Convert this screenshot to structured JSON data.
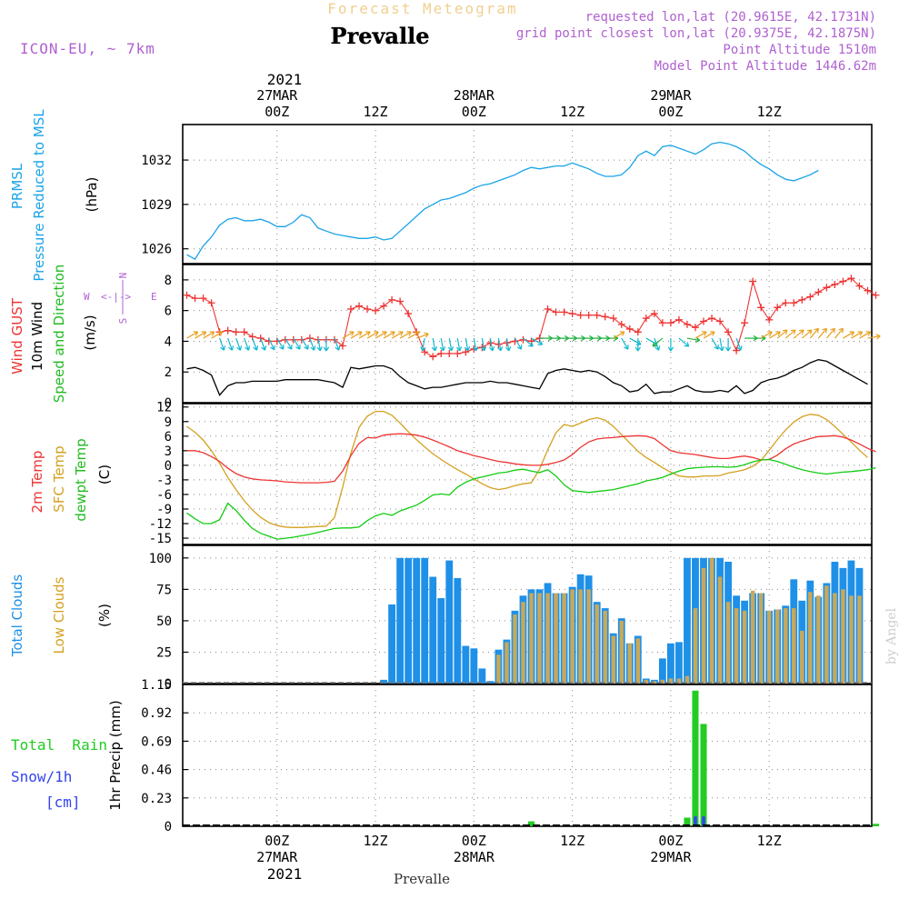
{
  "header": {
    "chart_title": "Forecast Meteogram",
    "location": "Prevalle",
    "model": "ICON-EU, ~ 7km",
    "requested": "requested lon,lat (20.9615E, 42.1731N)",
    "gridpoint": "grid point closest lon,lat (20.9375E, 42.1875N)",
    "point_altitude": "Point Altitude 1510m",
    "model_altitude": "Model Point Altitude 1446.62m",
    "footer_location": "Prevalle",
    "credit": "by Angel"
  },
  "time_axis": {
    "top_year": "2021",
    "bottom_year": "2021",
    "ticks": [
      {
        "hour": 11,
        "time": "00Z",
        "date": "27MAR"
      },
      {
        "hour": 23,
        "time": "12Z",
        "date": ""
      },
      {
        "hour": 35,
        "time": "00Z",
        "date": "28MAR"
      },
      {
        "hour": 47,
        "time": "12Z",
        "date": ""
      },
      {
        "hour": 59,
        "time": "00Z",
        "date": "29MAR"
      },
      {
        "hour": 71,
        "time": "12Z",
        "date": ""
      }
    ]
  },
  "colors": {
    "pressure": "#1aa3e8",
    "gust": "#ee3333",
    "wind": "#000000",
    "temp": "#ee3333",
    "sfc": "#d4a020",
    "dewpt": "#11cc11",
    "total_clouds": "#1e90e8",
    "low_clouds": "#c8a85a",
    "rain": "#22cc22",
    "snow": "#3344ee",
    "header_title": "#f0d090",
    "header_purple": "#b060d0"
  },
  "chart_data": [
    {
      "type": "line",
      "title": "PRMSL",
      "ylabel_lines": [
        "PRMSL",
        "Pressure Reduced to MSL"
      ],
      "unit": "(hPa)",
      "yticks": [
        "1026",
        "1029",
        "1032"
      ],
      "ylim": [
        1025,
        1034.4
      ],
      "x_start_hour": 0,
      "series": [
        {
          "key": "pressure",
          "values": [
            1025.6,
            1025.3,
            1026.2,
            1026.8,
            1027.6,
            1028.0,
            1028.1,
            1027.9,
            1027.9,
            1028.0,
            1027.8,
            1027.5,
            1027.5,
            1027.8,
            1028.3,
            1028.1,
            1027.4,
            1027.2,
            1027.0,
            1026.9,
            1026.8,
            1026.7,
            1026.7,
            1026.8,
            1026.6,
            1026.7,
            1027.2,
            1027.7,
            1028.2,
            1028.7,
            1029.0,
            1029.3,
            1029.4,
            1029.6,
            1029.8,
            1030.1,
            1030.3,
            1030.4,
            1030.6,
            1030.8,
            1031.0,
            1031.3,
            1031.5,
            1031.4,
            1031.5,
            1031.6,
            1031.6,
            1031.8,
            1031.6,
            1031.4,
            1031.1,
            1030.9,
            1030.9,
            1031.0,
            1031.5,
            1032.3,
            1032.6,
            1032.3,
            1032.9,
            1033.0,
            1032.8,
            1032.6,
            1032.4,
            1032.7,
            1033.1,
            1033.2,
            1033.1,
            1032.9,
            1032.6,
            1032.1,
            1031.7,
            1031.4,
            1031.0,
            1030.7,
            1030.6,
            1030.8,
            1031.0,
            1031.3
          ]
        }
      ]
    },
    {
      "type": "line",
      "title": "Wind",
      "ylabel_lines": [
        "Wind GUST",
        "10m Wind",
        "Speed and Direction"
      ],
      "unit": "(m/s)",
      "compass": {
        "n": "N",
        "s": "S",
        "e": "E",
        "w": "W",
        "glyph": "<-|->"
      },
      "yticks": [
        "0",
        "2",
        "4",
        "6",
        "8"
      ],
      "ylim": [
        0,
        9
      ],
      "x_start_hour": 0,
      "series": [
        {
          "key": "gust",
          "values": [
            7.0,
            6.8,
            6.8,
            6.5,
            4.6,
            4.7,
            4.6,
            4.6,
            4.3,
            4.2,
            4.0,
            4.0,
            4.1,
            4.1,
            4.1,
            4.2,
            4.1,
            4.1,
            4.1,
            3.7,
            6.1,
            6.3,
            6.1,
            6.0,
            6.3,
            6.7,
            6.6,
            5.8,
            4.6,
            3.3,
            3.0,
            3.2,
            3.2,
            3.2,
            3.3,
            3.5,
            3.6,
            3.9,
            3.8,
            3.9,
            4.0,
            4.1,
            4.0,
            4.2,
            6.1,
            5.9,
            5.9,
            5.8,
            5.7,
            5.7,
            5.7,
            5.6,
            5.5,
            5.1,
            4.8,
            4.6,
            5.5,
            5.8,
            5.2,
            5.2,
            5.4,
            5.1,
            4.9,
            5.3,
            5.5,
            5.3,
            4.6,
            3.4,
            5.2,
            7.9,
            6.2,
            5.4,
            6.2,
            6.5,
            6.5,
            6.7,
            6.9,
            7.2,
            7.5,
            7.7,
            7.9,
            8.1,
            7.6,
            7.3,
            7.0
          ]
        },
        {
          "key": "wind",
          "values": [
            2.2,
            2.3,
            2.1,
            1.8,
            0.5,
            1.1,
            1.3,
            1.3,
            1.4,
            1.4,
            1.4,
            1.4,
            1.5,
            1.5,
            1.5,
            1.5,
            1.5,
            1.4,
            1.3,
            1.0,
            2.3,
            2.2,
            2.3,
            2.4,
            2.4,
            2.2,
            1.7,
            1.3,
            1.1,
            0.9,
            1.0,
            1.0,
            1.1,
            1.2,
            1.3,
            1.3,
            1.3,
            1.4,
            1.3,
            1.3,
            1.2,
            1.1,
            1.0,
            0.9,
            1.9,
            2.1,
            2.2,
            2.1,
            2.0,
            2.1,
            2.0,
            1.7,
            1.3,
            1.1,
            0.7,
            0.8,
            1.2,
            0.6,
            0.7,
            0.7,
            0.9,
            1.1,
            0.8,
            0.7,
            0.7,
            0.8,
            0.7,
            1.1,
            0.6,
            0.8,
            1.3,
            1.5,
            1.6,
            1.8,
            2.1,
            2.3,
            2.6,
            2.8,
            2.7,
            2.4,
            2.1,
            1.8,
            1.5,
            1.2
          ]
        },
        {
          "key": "arrow_dir_deg",
          "values": [
            60,
            60,
            60,
            60,
            160,
            160,
            160,
            160,
            160,
            160,
            155,
            150,
            150,
            150,
            150,
            160,
            170,
            180,
            160,
            60,
            60,
            60,
            60,
            60,
            60,
            60,
            60,
            60,
            70,
            190,
            170,
            170,
            170,
            170,
            170,
            170,
            170,
            170,
            170,
            170,
            150,
            130,
            120,
            90,
            90,
            90,
            90,
            90,
            90,
            90,
            90,
            90,
            60,
            150,
            120,
            180,
            120,
            160,
            230,
            180,
            130,
            100,
            60,
            60,
            150,
            170,
            180,
            160,
            90,
            90,
            60,
            60,
            50,
            50,
            50,
            50,
            40,
            40,
            40,
            40,
            60,
            60,
            60,
            80
          ]
        }
      ]
    },
    {
      "type": "line",
      "title": "Temperature",
      "ylabel_lines": [
        "2m Temp",
        "SFC Temp",
        "dewpt Temp"
      ],
      "unit": "(C)",
      "yticks": [
        "-15",
        "-12",
        "-9",
        "-6",
        "-3",
        "0",
        "3",
        "6",
        "9",
        "12"
      ],
      "ylim": [
        -16.3,
        12.7
      ],
      "x_start_hour": 0,
      "series": [
        {
          "key": "temp",
          "values": [
            3.0,
            3.0,
            2.6,
            1.8,
            0.8,
            -0.6,
            -1.7,
            -2.4,
            -2.8,
            -3.0,
            -3.1,
            -3.2,
            -3.4,
            -3.5,
            -3.6,
            -3.6,
            -3.6,
            -3.5,
            -3.3,
            -1.2,
            2.0,
            4.5,
            5.7,
            5.6,
            6.2,
            6.4,
            6.5,
            6.4,
            6.2,
            5.8,
            5.2,
            4.5,
            3.8,
            3.0,
            2.5,
            2.0,
            1.6,
            1.2,
            0.8,
            0.6,
            0.3,
            0.1,
            0.0,
            0.0,
            0.2,
            0.6,
            1.1,
            2.2,
            3.7,
            4.8,
            5.4,
            5.6,
            5.7,
            5.9,
            6.0,
            6.1,
            6.0,
            5.5,
            4.2,
            3.0,
            2.6,
            2.4,
            2.2,
            1.9,
            1.6,
            1.4,
            1.4,
            1.7,
            1.9,
            1.6,
            1.1,
            1.2,
            2.1,
            3.4,
            4.4,
            5.0,
            5.5,
            5.9,
            6.0,
            6.1,
            5.8,
            5.2,
            4.4,
            3.5,
            2.8
          ]
        },
        {
          "key": "sfc",
          "values": [
            8.0,
            6.8,
            5.2,
            3.0,
            0.4,
            -2.5,
            -5.0,
            -7.3,
            -9.2,
            -10.7,
            -11.8,
            -12.4,
            -12.7,
            -12.8,
            -12.8,
            -12.7,
            -12.6,
            -12.5,
            -10.8,
            -4.5,
            2.5,
            7.8,
            10.1,
            11.1,
            11.1,
            10.3,
            8.7,
            6.9,
            5.3,
            3.8,
            2.4,
            1.2,
            0.1,
            -0.9,
            -1.8,
            -2.8,
            -3.8,
            -4.6,
            -5.0,
            -4.7,
            -4.2,
            -3.8,
            -3.6,
            -0.8,
            3.2,
            6.7,
            8.4,
            8.0,
            8.7,
            9.4,
            9.8,
            9.3,
            8.0,
            6.3,
            4.6,
            2.9,
            1.6,
            0.6,
            -0.5,
            -1.4,
            -2.2,
            -2.4,
            -2.4,
            -2.2,
            -2.2,
            -2.1,
            -1.6,
            -1.3,
            -0.9,
            -0.2,
            1.0,
            3.1,
            5.3,
            7.3,
            8.9,
            10.0,
            10.5,
            10.3,
            9.4,
            8.0,
            6.4,
            4.8,
            3.1,
            1.6
          ]
        },
        {
          "key": "dewpt",
          "values": [
            -9.8,
            -11.0,
            -12.0,
            -12.0,
            -11.2,
            -7.8,
            -9.3,
            -11.3,
            -13.0,
            -14.0,
            -14.6,
            -15.2,
            -15.0,
            -14.8,
            -14.5,
            -14.2,
            -13.8,
            -13.4,
            -13.0,
            -12.9,
            -12.9,
            -12.7,
            -11.4,
            -10.4,
            -9.9,
            -10.3,
            -9.4,
            -8.8,
            -8.2,
            -7.2,
            -6.1,
            -5.9,
            -6.1,
            -4.5,
            -3.5,
            -2.8,
            -2.4,
            -2.0,
            -1.6,
            -1.4,
            -1.0,
            -0.8,
            -1.2,
            -1.5,
            -0.9,
            -2.2,
            -4.0,
            -5.2,
            -5.4,
            -5.6,
            -5.4,
            -5.2,
            -5.0,
            -4.6,
            -4.2,
            -3.8,
            -3.2,
            -2.9,
            -2.5,
            -1.8,
            -1.2,
            -0.7,
            -0.5,
            -0.4,
            -0.3,
            -0.3,
            -0.4,
            -0.3,
            0.1,
            0.7,
            1.1,
            1.2,
            0.8,
            0.2,
            -0.4,
            -0.9,
            -1.3,
            -1.6,
            -1.8,
            -1.6,
            -1.4,
            -1.3,
            -1.1,
            -0.9,
            -0.5
          ]
        }
      ]
    },
    {
      "type": "bar",
      "title": "Clouds",
      "ylabel_lines": [
        "Total Clouds",
        "Low Clouds"
      ],
      "unit": "(%)",
      "yticks": [
        "0",
        "25",
        "50",
        "75",
        "100"
      ],
      "ylim": [
        0,
        110
      ],
      "x_start_hour": 0,
      "series": [
        {
          "key": "total_clouds",
          "values": [
            0,
            0,
            0,
            0,
            0,
            0,
            0,
            0,
            0,
            0,
            0,
            0,
            0,
            0,
            0,
            0,
            0,
            0,
            0,
            0,
            0,
            0,
            0,
            0,
            3,
            63,
            100,
            100,
            100,
            100,
            85,
            68,
            98,
            84,
            30,
            28,
            12,
            2,
            27,
            35,
            58,
            70,
            75,
            75,
            80,
            72,
            72,
            77,
            87,
            86,
            65,
            60,
            40,
            52,
            32,
            38,
            4,
            3,
            20,
            32,
            33,
            100,
            100,
            100,
            100,
            100,
            97,
            70,
            66,
            72,
            72,
            58,
            59,
            62,
            83,
            66,
            82,
            69,
            80,
            97,
            92,
            98,
            92
          ]
        },
        {
          "key": "low_clouds",
          "values": [
            0,
            0,
            0,
            0,
            0,
            0,
            0,
            0,
            0,
            0,
            0,
            0,
            0,
            0,
            0,
            0,
            0,
            0,
            0,
            0,
            0,
            0,
            0,
            0,
            0,
            0,
            0,
            0,
            0,
            0,
            0,
            0,
            0,
            0,
            0,
            0,
            0,
            0,
            23,
            33,
            55,
            65,
            72,
            72,
            72,
            72,
            72,
            75,
            75,
            75,
            63,
            58,
            38,
            50,
            32,
            36,
            3,
            2,
            3,
            4,
            4,
            6,
            60,
            92,
            100,
            85,
            65,
            60,
            58,
            74,
            72,
            58,
            59,
            60,
            60,
            42,
            73,
            70,
            78,
            72,
            75,
            70,
            70
          ]
        }
      ]
    },
    {
      "type": "bar",
      "title": "Precipitation",
      "ylabel": "1hr Precip (mm)",
      "side_labels": {
        "rain": "Total  Rain",
        "snow": "Snow/1h",
        "snow_unit": "[cm]"
      },
      "yticks": [
        "0",
        "0.23",
        "0.46",
        "0.69",
        "0.92",
        "1.15"
      ],
      "ylim": [
        0,
        1.15
      ],
      "x_start_hour": 0,
      "series": [
        {
          "key": "rain",
          "values": [
            0,
            0,
            0,
            0,
            0,
            0,
            0,
            0,
            0,
            0,
            0,
            0,
            0,
            0,
            0,
            0,
            0,
            0,
            0,
            0,
            0,
            0,
            0,
            0,
            0,
            0,
            0,
            0,
            0,
            0,
            0,
            0,
            0,
            0,
            0,
            0,
            0,
            0,
            0,
            0,
            0,
            0,
            0.04,
            0,
            0,
            0,
            0,
            0,
            0,
            0,
            0,
            0,
            0,
            0,
            0,
            0,
            0,
            0,
            0,
            0,
            0,
            0.07,
            1.1,
            0.83,
            0,
            0,
            0,
            0,
            0,
            0,
            0,
            0,
            0,
            0,
            0,
            0,
            0,
            0,
            0,
            0,
            0,
            0,
            0,
            0,
            0.02
          ]
        },
        {
          "key": "snow",
          "values": [
            0,
            0,
            0,
            0,
            0,
            0,
            0,
            0,
            0,
            0,
            0,
            0,
            0,
            0,
            0,
            0,
            0,
            0,
            0,
            0,
            0,
            0,
            0,
            0,
            0,
            0,
            0,
            0,
            0,
            0,
            0,
            0,
            0,
            0,
            0,
            0,
            0,
            0,
            0,
            0,
            0,
            0,
            0,
            0,
            0,
            0,
            0,
            0,
            0,
            0,
            0,
            0,
            0,
            0,
            0,
            0,
            0,
            0,
            0,
            0,
            0,
            0,
            0.08,
            0.08,
            0,
            0,
            0,
            0,
            0,
            0,
            0,
            0,
            0,
            0,
            0,
            0,
            0,
            0,
            0,
            0,
            0,
            0,
            0,
            0,
            0
          ]
        }
      ]
    }
  ]
}
